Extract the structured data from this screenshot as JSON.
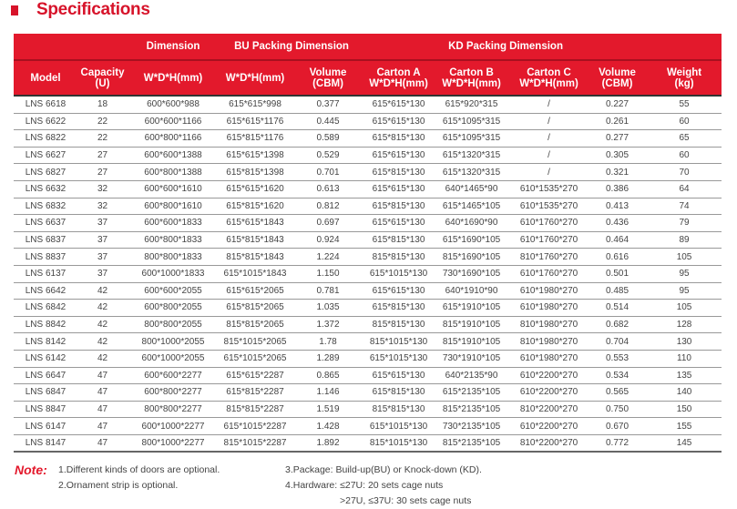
{
  "title": "Specifications",
  "colors": {
    "accent": "#e3192c"
  },
  "header_groups": {
    "dimension": "Dimension",
    "bu": "BU Packing Dimension",
    "kd": "KD Packing Dimension"
  },
  "columns": [
    {
      "line1": "Model",
      "line2": ""
    },
    {
      "line1": "Capacity",
      "line2": "(U)"
    },
    {
      "line1": "W*D*H(mm)",
      "line2": ""
    },
    {
      "line1": "W*D*H(mm)",
      "line2": ""
    },
    {
      "line1": "Volume",
      "line2": "(CBM)"
    },
    {
      "line1": "Carton A",
      "line2": "W*D*H(mm)"
    },
    {
      "line1": "Carton B",
      "line2": "W*D*H(mm)"
    },
    {
      "line1": "Carton C",
      "line2": "W*D*H(mm)"
    },
    {
      "line1": "Volume",
      "line2": "(CBM)"
    },
    {
      "line1": "Weight",
      "line2": "(kg)"
    }
  ],
  "rows": [
    [
      "LNS 6618",
      "18",
      "600*600*988",
      "615*615*998",
      "0.377",
      "615*615*130",
      "615*920*315",
      "/",
      "0.227",
      "55"
    ],
    [
      "LNS 6622",
      "22",
      "600*600*1166",
      "615*615*1176",
      "0.445",
      "615*615*130",
      "615*1095*315",
      "/",
      "0.261",
      "60"
    ],
    [
      "LNS 6822",
      "22",
      "600*800*1166",
      "615*815*1176",
      "0.589",
      "615*815*130",
      "615*1095*315",
      "/",
      "0.277",
      "65"
    ],
    [
      "LNS 6627",
      "27",
      "600*600*1388",
      "615*615*1398",
      "0.529",
      "615*615*130",
      "615*1320*315",
      "/",
      "0.305",
      "60"
    ],
    [
      "LNS 6827",
      "27",
      "600*800*1388",
      "615*815*1398",
      "0.701",
      "615*815*130",
      "615*1320*315",
      "/",
      "0.321",
      "70"
    ],
    [
      "LNS 6632",
      "32",
      "600*600*1610",
      "615*615*1620",
      "0.613",
      "615*615*130",
      "640*1465*90",
      "610*1535*270",
      "0.386",
      "64"
    ],
    [
      "LNS 6832",
      "32",
      "600*800*1610",
      "615*815*1620",
      "0.812",
      "615*815*130",
      "615*1465*105",
      "610*1535*270",
      "0.413",
      "74"
    ],
    [
      "LNS 6637",
      "37",
      "600*600*1833",
      "615*615*1843",
      "0.697",
      "615*615*130",
      "640*1690*90",
      "610*1760*270",
      "0.436",
      "79"
    ],
    [
      "LNS 6837",
      "37",
      "600*800*1833",
      "615*815*1843",
      "0.924",
      "615*815*130",
      "615*1690*105",
      "610*1760*270",
      "0.464",
      "89"
    ],
    [
      "LNS 8837",
      "37",
      "800*800*1833",
      "815*815*1843",
      "1.224",
      "815*815*130",
      "815*1690*105",
      "810*1760*270",
      "0.616",
      "105"
    ],
    [
      "LNS 6137",
      "37",
      "600*1000*1833",
      "615*1015*1843",
      "1.150",
      "615*1015*130",
      "730*1690*105",
      "610*1760*270",
      "0.501",
      "95"
    ],
    [
      "LNS 6642",
      "42",
      "600*600*2055",
      "615*615*2065",
      "0.781",
      "615*615*130",
      "640*1910*90",
      "610*1980*270",
      "0.485",
      "95"
    ],
    [
      "LNS 6842",
      "42",
      "600*800*2055",
      "615*815*2065",
      "1.035",
      "615*815*130",
      "615*1910*105",
      "610*1980*270",
      "0.514",
      "105"
    ],
    [
      "LNS 8842",
      "42",
      "800*800*2055",
      "815*815*2065",
      "1.372",
      "815*815*130",
      "815*1910*105",
      "810*1980*270",
      "0.682",
      "128"
    ],
    [
      "LNS 8142",
      "42",
      "800*1000*2055",
      "815*1015*2065",
      "1.78",
      "815*1015*130",
      "815*1910*105",
      "810*1980*270",
      "0.704",
      "130"
    ],
    [
      "LNS 6142",
      "42",
      "600*1000*2055",
      "615*1015*2065",
      "1.289",
      "615*1015*130",
      "730*1910*105",
      "610*1980*270",
      "0.553",
      "110"
    ],
    [
      "LNS 6647",
      "47",
      "600*600*2277",
      "615*615*2287",
      "0.865",
      "615*615*130",
      "640*2135*90",
      "610*2200*270",
      "0.534",
      "135"
    ],
    [
      "LNS 6847",
      "47",
      "600*800*2277",
      "615*815*2287",
      "1.146",
      "615*815*130",
      "615*2135*105",
      "610*2200*270",
      "0.565",
      "140"
    ],
    [
      "LNS 8847",
      "47",
      "800*800*2277",
      "815*815*2287",
      "1.519",
      "815*815*130",
      "815*2135*105",
      "810*2200*270",
      "0.750",
      "150"
    ],
    [
      "LNS 6147",
      "47",
      "600*1000*2277",
      "615*1015*2287",
      "1.428",
      "615*1015*130",
      "730*2135*105",
      "610*2200*270",
      "0.670",
      "155"
    ],
    [
      "LNS 8147",
      "47",
      "800*1000*2277",
      "815*1015*2287",
      "1.892",
      "815*1015*130",
      "815*2135*105",
      "810*2200*270",
      "0.772",
      "145"
    ]
  ],
  "notes": {
    "label": "Note:",
    "items": [
      "1.Different kinds of doors are optional.",
      "2.Ornament strip is optional.",
      "3.Package: Build-up(BU)  or  Knock-down (KD).",
      "4.Hardware:  ≤27U: 20 sets cage nuts",
      ">27U, ≤37U: 30 sets cage nuts"
    ]
  }
}
